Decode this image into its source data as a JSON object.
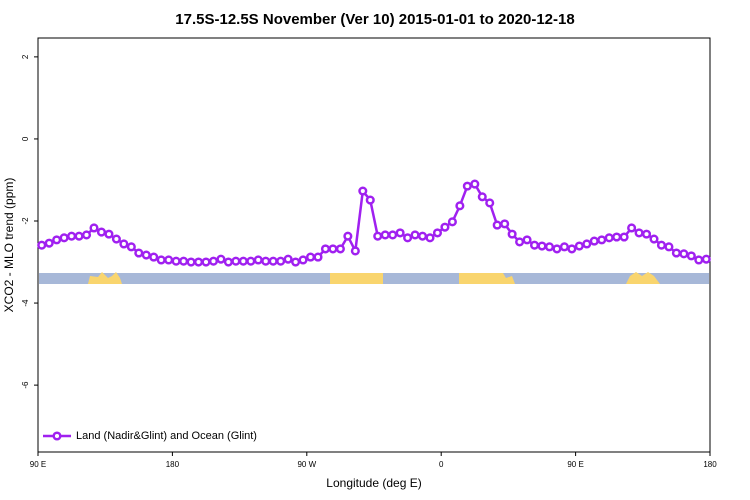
{
  "chart_data": {
    "type": "line",
    "title": "17.5S-12.5S November (Ver 10)   2015-01-01 to 2020-12-18",
    "x_label": "Longitude (deg E)",
    "y_label": "XCO2 - MLO trend (ppm)",
    "xlim": [
      90,
      540
    ],
    "ylim": [
      -7.63,
      2.46
    ],
    "xticks": [
      {
        "value": 90,
        "label": "90 E"
      },
      180,
      {
        "value": 270,
        "label": "90 W"
      },
      {
        "value": 360,
        "label": "0"
      },
      {
        "value": 450,
        "label": "90 E"
      },
      {
        "value": 540,
        "label": "180"
      }
    ],
    "yticks": [
      -6,
      -4,
      -2,
      0,
      2
    ],
    "legend_position": "bottom-left",
    "x": [
      92.5,
      97.5,
      102.5,
      107.5,
      112.5,
      117.5,
      122.5,
      127.5,
      132.5,
      137.5,
      142.5,
      147.5,
      152.5,
      157.5,
      162.5,
      167.5,
      172.5,
      177.5,
      182.5,
      187.5,
      192.5,
      197.5,
      202.5,
      207.5,
      212.5,
      217.5,
      222.5,
      227.5,
      232.5,
      237.5,
      242.5,
      247.5,
      252.5,
      257.5,
      262.5,
      267.5,
      272.5,
      277.5,
      282.5,
      287.5,
      292.5,
      297.5,
      302.5,
      307.5,
      312.5,
      317.5,
      322.5,
      327.5,
      332.5,
      337.5,
      342.5,
      347.5,
      352.5,
      357.5,
      362.5,
      367.5,
      372.5,
      377.5,
      382.5,
      387.5,
      392.5,
      397.5,
      402.5,
      407.5,
      412.5,
      417.5,
      422.5,
      427.5,
      432.5,
      437.5,
      442.5,
      447.5,
      452.5,
      457.5,
      462.5,
      467.5,
      472.5,
      477.5,
      482.5,
      487.5,
      492.5,
      497.5,
      502.5,
      507.5,
      512.5,
      517.5,
      522.5,
      527.5,
      532.5,
      537.5
    ],
    "series": [
      {
        "name": "Land (Nadir&Glint) and Ocean (Glint)",
        "color": "#a020f0",
        "values": [
          -2.59,
          -2.54,
          -2.46,
          -2.41,
          -2.37,
          -2.37,
          -2.34,
          -2.17,
          -2.27,
          -2.32,
          -2.44,
          -2.56,
          -2.63,
          -2.78,
          -2.83,
          -2.88,
          -2.95,
          -2.95,
          -2.98,
          -2.98,
          -3.0,
          -3.0,
          -3.0,
          -2.98,
          -2.93,
          -3.0,
          -2.98,
          -2.98,
          -2.98,
          -2.95,
          -2.98,
          -2.98,
          -2.98,
          -2.93,
          -3.0,
          -2.95,
          -2.88,
          -2.88,
          -2.68,
          -2.68,
          -2.68,
          -2.37,
          -2.73,
          -1.27,
          -1.49,
          -2.37,
          -2.34,
          -2.34,
          -2.29,
          -2.41,
          -2.34,
          -2.37,
          -2.41,
          -2.29,
          -2.15,
          -2.02,
          -1.63,
          -1.15,
          -1.1,
          -1.41,
          -1.56,
          -2.1,
          -2.07,
          -2.32,
          -2.51,
          -2.46,
          -2.59,
          -2.61,
          -2.63,
          -2.68,
          -2.63,
          -2.68,
          -2.61,
          -2.56,
          -2.49,
          -2.46,
          -2.41,
          -2.39,
          -2.39,
          -2.17,
          -2.29,
          -2.32,
          -2.44,
          -2.59,
          -2.63,
          -2.78,
          -2.8,
          -2.85,
          -2.95,
          -2.93
        ]
      }
    ]
  }
}
